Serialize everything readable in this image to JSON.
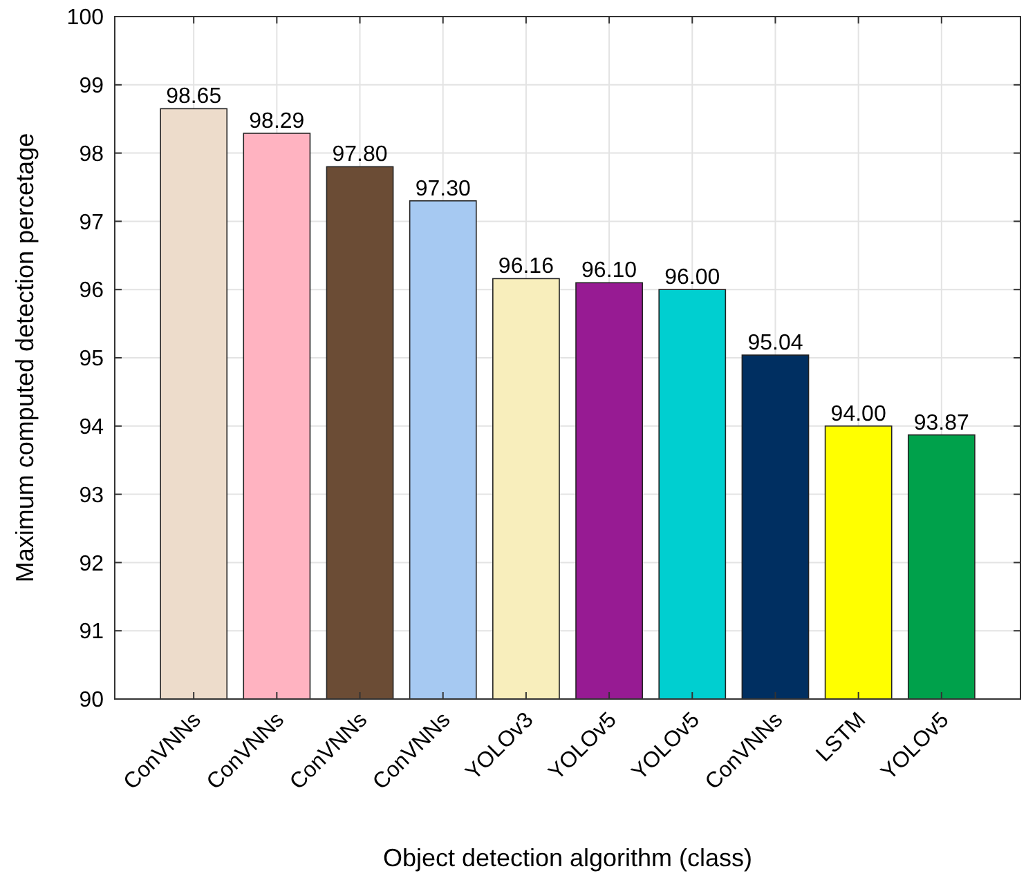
{
  "chart_data": {
    "type": "bar",
    "xlabel": "Object detection algorithm (class)",
    "ylabel": "Maximum computed detection percetage",
    "categories": [
      "ConVNNs",
      "ConVNNs",
      "ConVNNs",
      "ConVNNs",
      "YOLOv3",
      "YOLOv5",
      "YOLOv5",
      "ConVNNs",
      "LSTM",
      "YOLOv5"
    ],
    "values": [
      98.65,
      98.29,
      97.8,
      97.3,
      96.16,
      96.1,
      96.0,
      95.04,
      94.0,
      93.87
    ],
    "colors": [
      "#eddccb",
      "#ffb3c1",
      "#6b4c35",
      "#a6c9f2",
      "#f8eebc",
      "#971b93",
      "#00cfd0",
      "#002f61",
      "#ffff00",
      "#00a14b"
    ],
    "value_labels": [
      "98.65",
      "98.29",
      "97.80",
      "97.30",
      "96.16",
      "96.10",
      "96.00",
      "95.04",
      "94.00",
      "93.87"
    ],
    "ylim": [
      90,
      100
    ],
    "yticks": [
      90,
      91,
      92,
      93,
      94,
      95,
      96,
      97,
      98,
      99,
      100
    ],
    "grid": true
  }
}
